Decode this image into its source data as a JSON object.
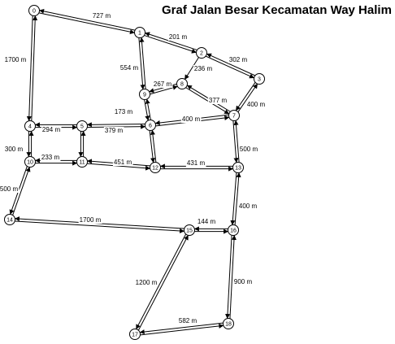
{
  "title": "Graf Jalan Besar Kecamatan Way Halim",
  "nodes": [
    {
      "id": "0",
      "label": "0"
    },
    {
      "id": "1",
      "label": "1"
    },
    {
      "id": "2",
      "label": "2"
    },
    {
      "id": "3",
      "label": "3"
    },
    {
      "id": "4",
      "label": "4"
    },
    {
      "id": "5",
      "label": "5"
    },
    {
      "id": "6",
      "label": "6"
    },
    {
      "id": "7",
      "label": "7"
    },
    {
      "id": "8",
      "label": "8"
    },
    {
      "id": "9",
      "label": "9"
    },
    {
      "id": "10",
      "label": "10"
    },
    {
      "id": "11",
      "label": "11"
    },
    {
      "id": "12",
      "label": "12"
    },
    {
      "id": "13",
      "label": "13"
    },
    {
      "id": "14",
      "label": "14"
    },
    {
      "id": "15",
      "label": "15"
    },
    {
      "id": "16",
      "label": "16"
    },
    {
      "id": "17",
      "label": "17"
    },
    {
      "id": "18",
      "label": "18"
    }
  ],
  "edges": [
    {
      "from": "0",
      "to": "1",
      "label": "727 m",
      "bidirectional": true
    },
    {
      "from": "1",
      "to": "2",
      "label": "201 m",
      "bidirectional": true
    },
    {
      "from": "2",
      "to": "3",
      "label": "302 m",
      "bidirectional": true
    },
    {
      "from": "1",
      "to": "9",
      "label": "554 m",
      "bidirectional": true
    },
    {
      "from": "2",
      "to": "8",
      "label": "236 m",
      "bidirectional": false
    },
    {
      "from": "8",
      "to": "9",
      "label": "267 m",
      "bidirectional": true
    },
    {
      "from": "8",
      "to": "7",
      "label": "377 m",
      "bidirectional": true
    },
    {
      "from": "3",
      "to": "7",
      "label": "400 m",
      "bidirectional": true
    },
    {
      "from": "0",
      "to": "4",
      "label": "1700 m",
      "bidirectional": true
    },
    {
      "from": "9",
      "to": "6",
      "label": "173 m",
      "bidirectional": true
    },
    {
      "from": "4",
      "to": "5",
      "label": "294 m",
      "bidirectional": true
    },
    {
      "from": "5",
      "to": "6",
      "label": "379 m",
      "bidirectional": true
    },
    {
      "from": "6",
      "to": "7",
      "label": "400 m",
      "bidirectional": true
    },
    {
      "from": "4",
      "to": "10",
      "label": "300 m",
      "bidirectional": true
    },
    {
      "from": "5",
      "to": "11",
      "label": "",
      "bidirectional": true
    },
    {
      "from": "6",
      "to": "12",
      "label": "",
      "bidirectional": true
    },
    {
      "from": "7",
      "to": "13",
      "label": "500 m",
      "bidirectional": true
    },
    {
      "from": "10",
      "to": "11",
      "label": "233 m",
      "bidirectional": true
    },
    {
      "from": "11",
      "to": "12",
      "label": "451 m",
      "bidirectional": true
    },
    {
      "from": "12",
      "to": "13",
      "label": "431 m",
      "bidirectional": true
    },
    {
      "from": "10",
      "to": "14",
      "label": "500 m",
      "bidirectional": true
    },
    {
      "from": "13",
      "to": "16",
      "label": "400 m",
      "bidirectional": true
    },
    {
      "from": "14",
      "to": "15",
      "label": "1700 m",
      "bidirectional": true
    },
    {
      "from": "15",
      "to": "16",
      "label": "144 m",
      "bidirectional": true
    },
    {
      "from": "15",
      "to": "17",
      "label": "1200 m",
      "bidirectional": true
    },
    {
      "from": "16",
      "to": "18",
      "label": "900 m",
      "bidirectional": true
    },
    {
      "from": "17",
      "to": "18",
      "label": "582 m",
      "bidirectional": true
    }
  ]
}
